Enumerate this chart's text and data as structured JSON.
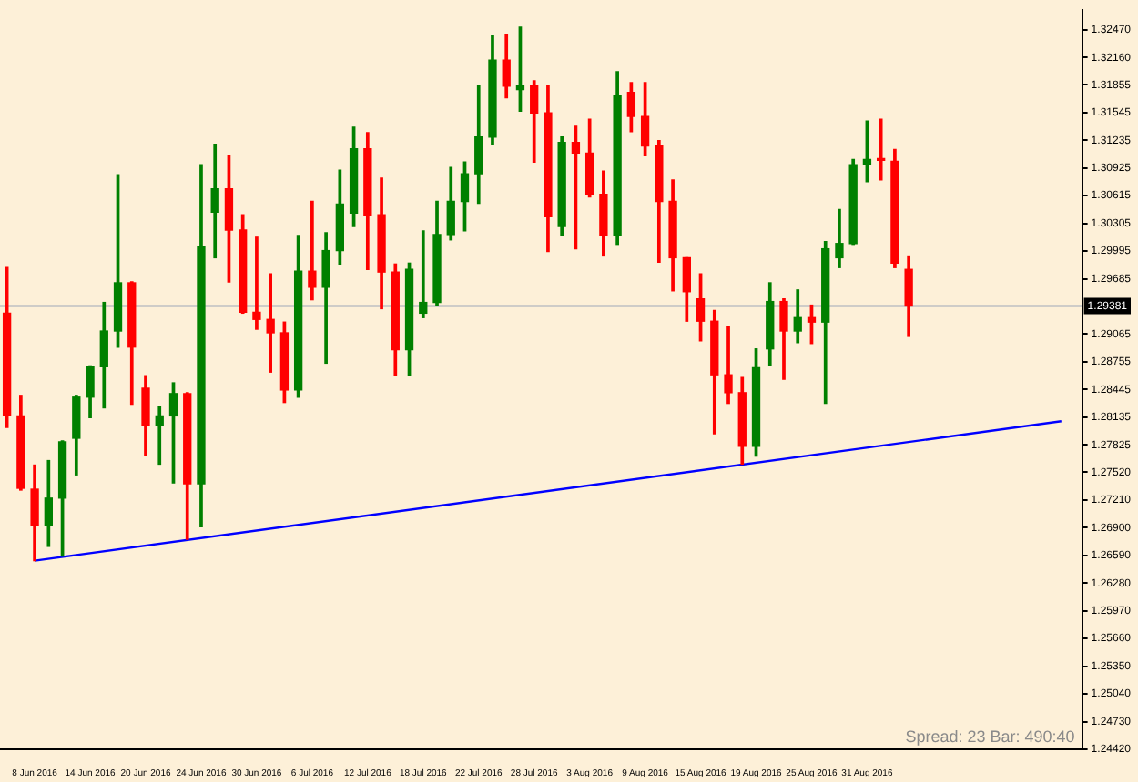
{
  "chart_data": {
    "type": "candlestick",
    "categories": [
      null,
      null,
      "8 Jun 2016",
      null,
      null,
      null,
      "14 Jun 2016",
      null,
      null,
      null,
      "20 Jun 2016",
      null,
      null,
      null,
      "24 Jun 2016",
      null,
      null,
      null,
      "30 Jun 2016",
      null,
      null,
      null,
      "6 Jul 2016",
      null,
      null,
      null,
      "12 Jul 2016",
      null,
      null,
      null,
      "18 Jul 2016",
      null,
      null,
      null,
      "22 Jul 2016",
      null,
      null,
      null,
      "28 Jul 2016",
      null,
      null,
      null,
      "3 Aug 2016",
      null,
      null,
      null,
      "9 Aug 2016",
      null,
      null,
      null,
      "15 Aug 2016",
      null,
      null,
      null,
      "19 Aug 2016",
      null,
      null,
      null,
      "25 Aug 2016",
      null,
      null,
      null,
      "31 Aug 2016",
      null,
      null,
      null,
      null,
      null,
      null,
      null,
      null,
      null,
      null,
      null,
      null,
      null,
      null,
      null
    ],
    "ohlc": [
      [
        1.293,
        1.2981,
        1.2802,
        1.2815
      ],
      [
        1.2815,
        1.2838,
        1.2732,
        1.2734
      ],
      [
        1.2733,
        1.276,
        1.2653,
        1.2692
      ],
      [
        1.2692,
        1.2765,
        1.2669,
        1.2723
      ],
      [
        1.2723,
        1.2787,
        1.2658,
        1.2786
      ],
      [
        1.279,
        1.2838,
        1.2749,
        1.2836
      ],
      [
        1.2836,
        1.2871,
        1.2813,
        1.287
      ],
      [
        1.287,
        1.2942,
        1.2824,
        1.291
      ],
      [
        1.291,
        1.3085,
        1.2892,
        1.2964
      ],
      [
        1.2964,
        1.2965,
        1.2828,
        1.2892
      ],
      [
        1.2846,
        1.286,
        1.2771,
        1.2804
      ],
      [
        1.2804,
        1.2825,
        1.2761,
        1.2815
      ],
      [
        1.2815,
        1.2852,
        1.274,
        1.284
      ],
      [
        1.284,
        1.2841,
        1.2677,
        1.2739
      ],
      [
        1.2739,
        1.3096,
        1.2691,
        1.3004
      ],
      [
        1.3043,
        1.3119,
        1.2992,
        1.3069
      ],
      [
        1.3069,
        1.3106,
        1.2965,
        1.3023
      ],
      [
        1.3023,
        1.304,
        1.293,
        1.2931
      ],
      [
        1.2931,
        1.3015,
        1.2912,
        1.2923
      ],
      [
        1.2923,
        1.2974,
        1.2864,
        1.2908
      ],
      [
        1.2908,
        1.292,
        1.283,
        1.2844
      ],
      [
        1.2844,
        1.3017,
        1.2836,
        1.2977
      ],
      [
        1.2977,
        1.3055,
        1.2945,
        1.2959
      ],
      [
        1.2959,
        1.302,
        1.2874,
        1.3
      ],
      [
        1.3,
        1.309,
        1.2985,
        1.3052
      ],
      [
        1.3042,
        1.3138,
        1.3027,
        1.3114
      ],
      [
        1.3114,
        1.3132,
        1.2979,
        1.304
      ],
      [
        1.304,
        1.3081,
        1.2935,
        1.2976
      ],
      [
        1.2976,
        1.2985,
        1.286,
        1.2889
      ],
      [
        1.2889,
        1.2986,
        1.286,
        1.2979
      ],
      [
        1.293,
        1.3022,
        1.2925,
        1.2942
      ],
      [
        1.2942,
        1.3055,
        1.2939,
        1.3018
      ],
      [
        1.3018,
        1.3093,
        1.3012,
        1.3055
      ],
      [
        1.3055,
        1.3099,
        1.3022,
        1.3086
      ],
      [
        1.3086,
        1.3184,
        1.3053,
        1.3127
      ],
      [
        1.3127,
        1.3241,
        1.3119,
        1.3213
      ],
      [
        1.3213,
        1.3242,
        1.3171,
        1.3184
      ],
      [
        1.318,
        1.325,
        1.3156,
        1.3184
      ],
      [
        1.3184,
        1.319,
        1.3099,
        1.3154
      ],
      [
        1.3154,
        1.3184,
        1.2999,
        1.3038
      ],
      [
        1.3027,
        1.3127,
        1.3017,
        1.3121
      ],
      [
        1.3121,
        1.3139,
        1.3002,
        1.3109
      ],
      [
        1.3109,
        1.3147,
        1.306,
        1.3063
      ],
      [
        1.3063,
        1.3089,
        1.2994,
        1.3017
      ],
      [
        1.3017,
        1.32,
        1.3007,
        1.3173
      ],
      [
        1.3177,
        1.3188,
        1.3133,
        1.315
      ],
      [
        1.315,
        1.3188,
        1.3106,
        1.3117
      ],
      [
        1.3117,
        1.3123,
        1.2987,
        1.3055
      ],
      [
        1.3055,
        1.3079,
        1.2955,
        1.2992
      ],
      [
        1.2992,
        1.2992,
        1.2921,
        1.2954
      ],
      [
        1.2946,
        1.2974,
        1.2899,
        1.2921
      ],
      [
        1.2921,
        1.2933,
        1.2795,
        1.2861
      ],
      [
        1.2861,
        1.2915,
        1.2829,
        1.2841
      ],
      [
        1.2841,
        1.2858,
        1.2761,
        1.2781
      ],
      [
        1.2781,
        1.289,
        1.277,
        1.2869
      ],
      [
        1.289,
        1.2964,
        1.2871,
        1.2943
      ],
      [
        1.2943,
        1.2946,
        1.2856,
        1.291
      ],
      [
        1.291,
        1.2956,
        1.2897,
        1.2925
      ],
      [
        1.2925,
        1.2939,
        1.2896,
        1.292
      ],
      [
        1.292,
        1.301,
        1.2829,
        1.3002
      ],
      [
        1.2992,
        1.3046,
        1.2981,
        1.3008
      ],
      [
        1.3008,
        1.3102,
        1.3007,
        1.3096
      ],
      [
        1.3096,
        1.3145,
        1.3077,
        1.3102
      ],
      [
        1.3102,
        1.3147,
        1.3079,
        1.3101
      ],
      [
        1.31,
        1.3113,
        1.2981,
        1.2986
      ],
      [
        1.2979,
        1.2994,
        1.2904,
        1.2938
      ],
      null,
      null,
      null,
      null,
      null,
      null,
      null,
      null,
      null,
      null,
      null,
      null
    ],
    "colors": [
      "#ff0000",
      "#ff0000",
      "#ff0000",
      "#008000",
      "#008000",
      "#008000",
      "#008000",
      "#008000",
      "#008000",
      "#ff0000",
      "#ff0000",
      "#008000",
      "#008000",
      "#ff0000",
      "#008000",
      "#008000",
      "#ff0000",
      "#ff0000",
      "#ff0000",
      "#ff0000",
      "#ff0000",
      "#008000",
      "#ff0000",
      "#008000",
      "#008000",
      "#008000",
      "#ff0000",
      "#ff0000",
      "#ff0000",
      "#008000",
      "#008000",
      "#008000",
      "#008000",
      "#008000",
      "#008000",
      "#008000",
      "#ff0000",
      "#008000",
      "#ff0000",
      "#ff0000",
      "#008000",
      "#ff0000",
      "#ff0000",
      "#ff0000",
      "#008000",
      "#ff0000",
      "#ff0000",
      "#ff0000",
      "#ff0000",
      "#ff0000",
      "#ff0000",
      "#ff0000",
      "#ff0000",
      "#ff0000",
      "#008000",
      "#008000",
      "#ff0000",
      "#008000",
      "#ff0000",
      "#008000",
      "#008000",
      "#008000",
      "#008000",
      "#ff0000",
      "#ff0000",
      "#ff0000",
      null,
      null,
      null,
      null,
      null,
      null,
      null,
      null,
      null,
      null,
      null,
      null
    ],
    "series": [
      {
        "type": "line",
        "color": "#0000ff",
        "values": [
          null,
          null,
          1.2653,
          null,
          null,
          null,
          null,
          null,
          null,
          null,
          null,
          null,
          null,
          null,
          null,
          null,
          null,
          null,
          null,
          null,
          null,
          null,
          null,
          null,
          null,
          null,
          null,
          null,
          null,
          null,
          null,
          null,
          null,
          null,
          null,
          null,
          null,
          null,
          null,
          null,
          null,
          null,
          null,
          null,
          null,
          null,
          null,
          null,
          null,
          null,
          null,
          null,
          null,
          null,
          null,
          null,
          null,
          null,
          null,
          null,
          null,
          null,
          null,
          null,
          null,
          null,
          null,
          null,
          null,
          null,
          null,
          null,
          null,
          null,
          null,
          null,
          1.2809,
          null
        ]
      }
    ],
    "ylim": [
      1.2442,
      1.3269
    ],
    "yticks": [
      {
        "value": 1.2442,
        "label": "1.24420"
      },
      {
        "value": 1.2473,
        "label": "1.24730"
      },
      {
        "value": 1.2504,
        "label": "1.25040"
      },
      {
        "value": 1.2535,
        "label": "1.25350"
      },
      {
        "value": 1.2566,
        "label": "1.25660"
      },
      {
        "value": 1.2597,
        "label": "1.25970"
      },
      {
        "value": 1.2628,
        "label": "1.26280"
      },
      {
        "value": 1.2659,
        "label": "1.26590"
      },
      {
        "value": 1.269,
        "label": "1.26900"
      },
      {
        "value": 1.2721,
        "label": "1.27210"
      },
      {
        "value": 1.2752,
        "label": "1.27520"
      },
      {
        "value": 1.27825,
        "label": "1.27825"
      },
      {
        "value": 1.28135,
        "label": "1.28135"
      },
      {
        "value": 1.28445,
        "label": "1.28445"
      },
      {
        "value": 1.28755,
        "label": "1.28755"
      },
      {
        "value": 1.29065,
        "label": "1.29065"
      },
      {
        "value": 1.29685,
        "label": "1.29685"
      },
      {
        "value": 1.29995,
        "label": "1.29995"
      },
      {
        "value": 1.30305,
        "label": "1.30305"
      },
      {
        "value": 1.30615,
        "label": "1.30615"
      },
      {
        "value": 1.30925,
        "label": "1.30925"
      },
      {
        "value": 1.31235,
        "label": "1.31235"
      },
      {
        "value": 1.31545,
        "label": "1.31545"
      },
      {
        "value": 1.31855,
        "label": "1.31855"
      },
      {
        "value": 1.3216,
        "label": "1.32160"
      },
      {
        "value": 1.3247,
        "label": "1.32470"
      }
    ],
    "ref_lines": [
      {
        "axis": "y",
        "value": 1.29381,
        "label": "1.29381",
        "color": "#a0a8b8"
      }
    ],
    "annotations": [
      "Spread: 23 Bar: 490:40"
    ]
  }
}
